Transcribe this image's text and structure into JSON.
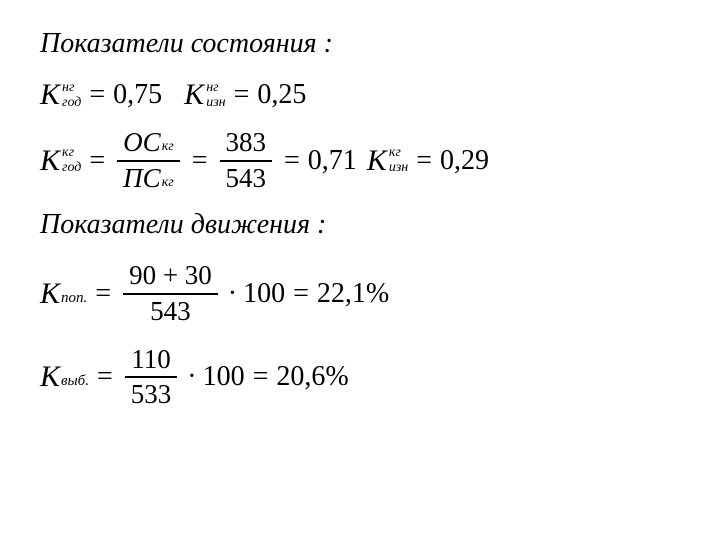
{
  "heading1": "Показатели состояния :",
  "heading2": "Показатели движения :",
  "line1": {
    "k1_base": "K",
    "k1_sup": "нг",
    "k1_sub": "год",
    "k1_val": "0,75",
    "k2_base": "K",
    "k2_sup": "нг",
    "k2_sub": "изн",
    "k2_val": "0,25"
  },
  "line2": {
    "k1_base": "K",
    "k1_sup": "кг",
    "k1_sub": "год",
    "frac1_num_base": "ОС",
    "frac1_num_sub": "кг",
    "frac1_den_base": "ПС",
    "frac1_den_sub": "кг",
    "frac2_num": "383",
    "frac2_den": "543",
    "result1": "0,71",
    "k2_base": "K",
    "k2_sup": "кг",
    "k2_sub": "изн",
    "k2_val": "0,29"
  },
  "line3": {
    "k_base": "K",
    "k_sub": "поп.",
    "num": "90 + 30",
    "den": "543",
    "mult": "100",
    "result": "22,1%"
  },
  "line4": {
    "k_base": "K",
    "k_sub": "выб.",
    "num": "110",
    "den": "533",
    "mult": "100",
    "result": "20,6%"
  },
  "symbols": {
    "eq": "=",
    "dot": "·"
  }
}
